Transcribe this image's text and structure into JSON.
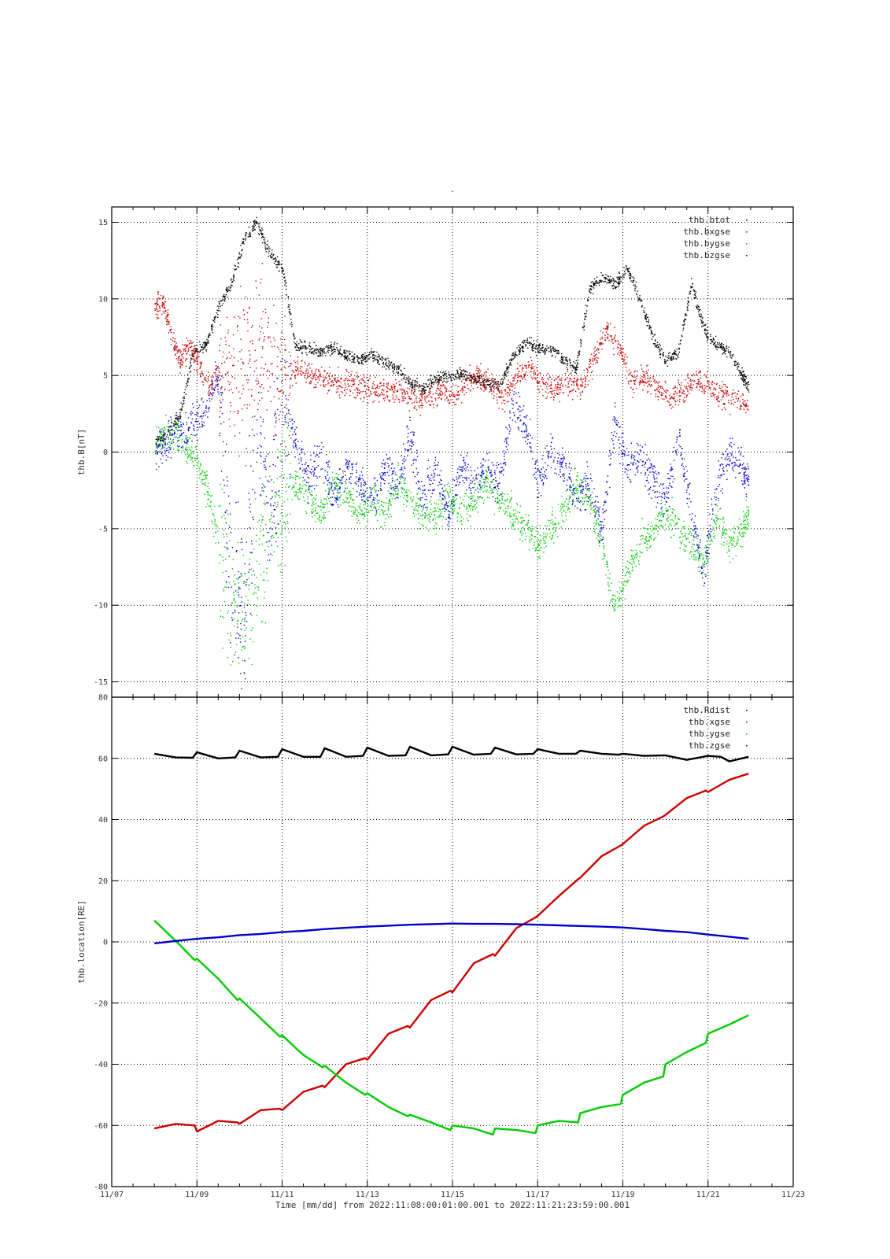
{
  "title": "-",
  "xaxis": {
    "label": "Time [mm/dd]  from 2022:11:08:00:01:00.001  to  2022:11:21:23:59:00.001",
    "tick_labels": [
      "11/07",
      "11/09",
      "11/11",
      "11/13",
      "11/15",
      "11/17",
      "11/19",
      "11/21",
      "11/23"
    ]
  },
  "chart_data": [
    {
      "type": "scatter",
      "title": "",
      "ylabel": "thb.B[nT]",
      "ylim": [
        -16,
        16
      ],
      "yticks": [
        -15,
        -10,
        -5,
        0,
        5,
        10,
        15
      ],
      "xlim_days": [
        7,
        23
      ],
      "grid": true,
      "legend_position": "top-right",
      "series": [
        {
          "name": "thb.btot",
          "color": "#000000",
          "x": [
            8.0,
            8.3,
            8.6,
            8.9,
            9.2,
            9.5,
            9.8,
            10.1,
            10.4,
            10.7,
            11.0,
            11.3,
            11.6,
            11.9,
            12.2,
            12.5,
            12.8,
            13.1,
            13.4,
            13.7,
            14.0,
            14.3,
            14.6,
            14.9,
            15.2,
            15.5,
            15.8,
            16.1,
            16.4,
            16.7,
            17.0,
            17.3,
            17.6,
            17.9,
            18.2,
            18.5,
            18.8,
            19.1,
            19.4,
            19.7,
            20.0,
            20.3,
            20.6,
            20.9,
            21.2,
            21.5,
            21.8,
            21.95
          ],
          "y": [
            0.5,
            1.2,
            2.5,
            6.5,
            7,
            9.5,
            11,
            14,
            15,
            13,
            12,
            7,
            6.8,
            6.5,
            6.8,
            6.3,
            6,
            6.4,
            5.8,
            5.5,
            4.5,
            4.2,
            4.8,
            5,
            5.2,
            4.8,
            4.5,
            4.4,
            6.2,
            7.2,
            6.8,
            6.8,
            6,
            5.5,
            10.5,
            11.5,
            11,
            12,
            10,
            7.5,
            6,
            6.5,
            11,
            8,
            7,
            6.5,
            5,
            4.3
          ]
        },
        {
          "name": "thb.bxgse",
          "color": "#cc0000",
          "x": [
            8.0,
            8.2,
            8.4,
            8.6,
            8.8,
            9.0,
            9.3,
            9.6,
            9.9,
            10.2,
            10.5,
            10.8,
            11.1,
            11.4,
            11.7,
            12.0,
            12.3,
            12.6,
            12.9,
            13.2,
            13.5,
            13.8,
            14.1,
            14.4,
            14.7,
            15.0,
            15.3,
            15.6,
            15.9,
            16.2,
            16.5,
            16.8,
            17.1,
            17.4,
            17.7,
            18.0,
            18.3,
            18.6,
            18.9,
            19.2,
            19.5,
            19.8,
            20.1,
            20.4,
            20.7,
            21.0,
            21.3,
            21.6,
            21.95
          ],
          "y": [
            9.5,
            9.8,
            7.5,
            6,
            7,
            6,
            4,
            6,
            5,
            6,
            7,
            5,
            5,
            5.5,
            5,
            4.8,
            4.5,
            4.5,
            4.2,
            4,
            4,
            3.8,
            3.5,
            3.5,
            4,
            3.8,
            4.5,
            5,
            4.5,
            3.5,
            5,
            5.5,
            4.5,
            4.2,
            4.5,
            4.3,
            6,
            8,
            7,
            4.5,
            5,
            4.2,
            3.5,
            4,
            5,
            4.2,
            3.8,
            3.5,
            3
          ]
        },
        {
          "name": "thb.bygse",
          "color": "#00cc00",
          "x": [
            8.0,
            8.3,
            8.6,
            8.9,
            9.2,
            9.5,
            9.8,
            10.1,
            10.4,
            10.7,
            11.0,
            11.3,
            11.6,
            11.9,
            12.2,
            12.5,
            12.8,
            13.1,
            13.4,
            13.7,
            14.0,
            14.3,
            14.6,
            14.9,
            15.2,
            15.5,
            15.8,
            16.1,
            16.4,
            16.7,
            17.0,
            17.3,
            17.6,
            17.9,
            18.2,
            18.5,
            18.8,
            19.1,
            19.4,
            19.7,
            20.0,
            20.3,
            20.6,
            20.9,
            21.2,
            21.5,
            21.8,
            21.95
          ],
          "y": [
            0.5,
            1,
            1,
            0,
            -2,
            -6,
            -9,
            -11,
            -8,
            -5,
            -3,
            -2,
            -3,
            -4,
            -2,
            -3,
            -4,
            -3,
            -4,
            -2,
            -3,
            -4,
            -4,
            -3,
            -4,
            -3,
            -2,
            -3,
            -4,
            -5,
            -6,
            -5,
            -4,
            -2,
            -3,
            -6,
            -10,
            -8,
            -6,
            -5,
            -4,
            -5,
            -6,
            -7,
            -4,
            -6,
            -5,
            -4
          ]
        },
        {
          "name": "thb.bzgse",
          "color": "#0000cc",
          "x": [
            8.0,
            8.3,
            8.6,
            8.9,
            9.2,
            9.5,
            9.8,
            10.1,
            10.4,
            10.7,
            11.0,
            11.3,
            11.6,
            11.9,
            12.2,
            12.5,
            12.8,
            13.1,
            13.4,
            13.7,
            14.0,
            14.3,
            14.6,
            14.9,
            15.2,
            15.5,
            15.8,
            16.1,
            16.4,
            16.7,
            17.0,
            17.3,
            17.6,
            17.9,
            18.2,
            18.5,
            18.8,
            19.1,
            19.4,
            19.7,
            20.0,
            20.3,
            20.6,
            20.9,
            21.2,
            21.5,
            21.8,
            21.95
          ],
          "y": [
            0,
            0.8,
            1.5,
            2,
            3,
            5,
            -9,
            -12,
            2,
            -4,
            3,
            1,
            -2,
            0,
            -3,
            -1,
            -2,
            -3,
            -1,
            -2,
            1,
            -3,
            -1,
            -4,
            -1,
            -2,
            -1,
            -2,
            3,
            2,
            -2,
            0,
            -1,
            -3,
            -2,
            -5,
            2,
            -1,
            0,
            -2,
            -3,
            1,
            -4,
            -8,
            -2,
            0,
            -1,
            -2
          ]
        }
      ]
    },
    {
      "type": "line",
      "title": "",
      "ylabel": "thb.location[RE]",
      "ylim": [
        -80,
        80
      ],
      "yticks": [
        -80,
        -60,
        -40,
        -20,
        0,
        20,
        40,
        60,
        80
      ],
      "xlim_days": [
        7,
        23
      ],
      "grid": true,
      "legend_position": "top-right",
      "series": [
        {
          "name": "thb.Rdist",
          "color": "#000000",
          "x": [
            8.0,
            8.5,
            8.9,
            9.0,
            9.5,
            9.9,
            10.0,
            10.5,
            10.9,
            11.0,
            11.5,
            11.9,
            12.0,
            12.5,
            12.9,
            13.0,
            13.5,
            13.9,
            14.0,
            14.5,
            14.9,
            15.0,
            15.5,
            15.9,
            16.0,
            16.5,
            16.9,
            17.0,
            17.5,
            17.9,
            18.0,
            18.5,
            18.9,
            19.0,
            19.5,
            20.0,
            20.5,
            21.0,
            21.3,
            21.5,
            21.95
          ],
          "y": [
            61.5,
            60.3,
            60.2,
            62,
            60,
            60.3,
            62.5,
            60.3,
            60.5,
            63,
            60.5,
            60.5,
            63.3,
            60.5,
            60.8,
            63.5,
            60.8,
            61,
            63.8,
            61,
            61.3,
            63.8,
            61.2,
            61.5,
            63.5,
            61.3,
            61.5,
            63,
            61.5,
            61.5,
            62.5,
            61.5,
            61.2,
            61.5,
            60.8,
            61,
            59.5,
            60.8,
            60.5,
            59,
            60.5
          ]
        },
        {
          "name": "thb.xgse",
          "color": "#cc0000",
          "x": [
            8.0,
            8.5,
            8.95,
            9.0,
            9.5,
            9.95,
            10.0,
            10.5,
            10.95,
            11.0,
            11.5,
            11.95,
            12.0,
            12.5,
            12.95,
            13.0,
            13.5,
            13.95,
            14.0,
            14.5,
            14.95,
            15.0,
            15.5,
            15.95,
            16.0,
            16.5,
            16.95,
            17.0,
            17.5,
            17.95,
            18.0,
            18.5,
            18.95,
            19.0,
            19.5,
            19.95,
            20.0,
            20.5,
            20.95,
            21.0,
            21.5,
            21.95
          ],
          "y": [
            -61,
            -59.5,
            -60,
            -62,
            -58.5,
            -59,
            -59.5,
            -55,
            -54.5,
            -55,
            -49,
            -47,
            -47.5,
            -40,
            -38,
            -38.5,
            -30,
            -27.5,
            -28,
            -19,
            -16,
            -16.5,
            -7,
            -4,
            -4.5,
            4.5,
            8,
            8.5,
            15,
            20.5,
            21,
            28,
            31.5,
            32,
            38,
            41,
            41.5,
            47,
            49.5,
            49,
            53,
            55
          ]
        },
        {
          "name": "thb.ygse",
          "color": "#00cc00",
          "x": [
            8.0,
            8.3,
            8.6,
            8.95,
            9.0,
            9.5,
            9.95,
            10.0,
            10.5,
            10.95,
            11.0,
            11.5,
            11.95,
            12.0,
            12.5,
            12.95,
            13.0,
            13.5,
            13.95,
            14.0,
            14.5,
            14.95,
            15.0,
            15.5,
            15.95,
            16.0,
            16.5,
            16.95,
            17.0,
            17.5,
            17.95,
            18.0,
            18.5,
            18.95,
            19.0,
            19.5,
            19.95,
            20.0,
            20.5,
            20.95,
            21.0,
            21.5,
            21.95
          ],
          "y": [
            7,
            3,
            -1,
            -6,
            -5.5,
            -12,
            -19,
            -18.5,
            -25,
            -31,
            -30.5,
            -37,
            -41,
            -40.5,
            -46,
            -50,
            -49.5,
            -54,
            -57,
            -56.5,
            -59,
            -61.5,
            -60,
            -61,
            -63,
            -61,
            -61.5,
            -62.5,
            -60,
            -58.5,
            -59,
            -56,
            -54,
            -53,
            -50,
            -46,
            -44,
            -40,
            -36,
            -33,
            -30,
            -27,
            -24
          ]
        },
        {
          "name": "thb.zgse",
          "color": "#0000cc",
          "x": [
            8.0,
            8.5,
            9.0,
            9.5,
            10.0,
            10.5,
            11.0,
            11.5,
            12.0,
            12.5,
            13.0,
            13.5,
            14.0,
            14.5,
            15.0,
            15.5,
            16.0,
            16.5,
            17.0,
            17.5,
            18.0,
            18.5,
            19.0,
            19.5,
            20.0,
            20.5,
            21.0,
            21.5,
            21.95
          ],
          "y": [
            -0.5,
            0.3,
            1,
            1.5,
            2.2,
            2.6,
            3.2,
            3.6,
            4.2,
            4.6,
            5,
            5.3,
            5.6,
            5.8,
            6,
            5.9,
            5.9,
            5.8,
            5.6,
            5.4,
            5.2,
            5,
            4.7,
            4.2,
            3.6,
            3.2,
            2.4,
            1.7,
            1
          ]
        }
      ]
    }
  ]
}
